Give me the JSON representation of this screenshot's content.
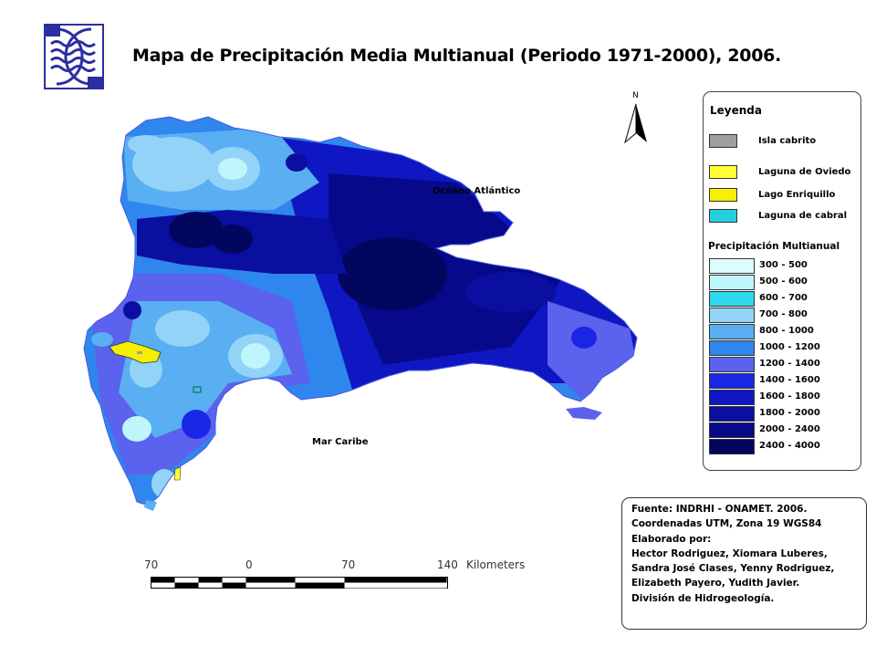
{
  "header": {
    "title": "Mapa de Precipitación Media Multianual (Periodo 1971-2000), 2006.",
    "logo_icon": "waves-emblem-icon"
  },
  "map": {
    "north_label": "N",
    "ocean_label": "Océano Atlántico",
    "sea_label": "Mar Caribe"
  },
  "legend": {
    "title": "Leyenda",
    "features": [
      {
        "label": "Isla cabrito",
        "color": "#9e9e9e"
      },
      {
        "label": "Laguna de Oviedo",
        "color": "#ffff33"
      },
      {
        "label": "Lago Enriquillo",
        "color": "#f5f000"
      },
      {
        "label": "Laguna de cabral",
        "color": "#22d0e0"
      }
    ],
    "precip_title": "Precipitación Multianual",
    "classes": [
      {
        "label": "300 - 500",
        "color": "#dcfcff"
      },
      {
        "label": "500 - 600",
        "color": "#bff6fb"
      },
      {
        "label": "600 - 700",
        "color": "#2fd8ec"
      },
      {
        "label": "700 - 800",
        "color": "#93d3f7"
      },
      {
        "label": "800 - 1000",
        "color": "#5aaef2"
      },
      {
        "label": "1000 - 1200",
        "color": "#2f86ec"
      },
      {
        "label": "1200 - 1400",
        "color": "#5a62ee"
      },
      {
        "label": "1400 - 1600",
        "color": "#1a26e6"
      },
      {
        "label": "1600 - 1800",
        "color": "#0f17c2"
      },
      {
        "label": "1800 - 2000",
        "color": "#0a0fa0"
      },
      {
        "label": "2000 - 2400",
        "color": "#06098a"
      },
      {
        "label": "2400 - 4000",
        "color": "#03065e"
      }
    ]
  },
  "source": {
    "lines": [
      "Fuente: INDRHI - ONAMET. 2006.",
      "Coordenadas UTM, Zona 19 WGS84",
      "Elaborado por:",
      "Hector Rodriguez, Xiomara Luberes,",
      "Sandra José Clases, Yenny Rodriguez,",
      "Elizabeth Payero, Yudith Javier.",
      "División de Hidrogeología."
    ]
  },
  "scale_bar": {
    "ticks": [
      "70",
      "0",
      "70",
      "140"
    ],
    "unit": "Kilometers"
  }
}
